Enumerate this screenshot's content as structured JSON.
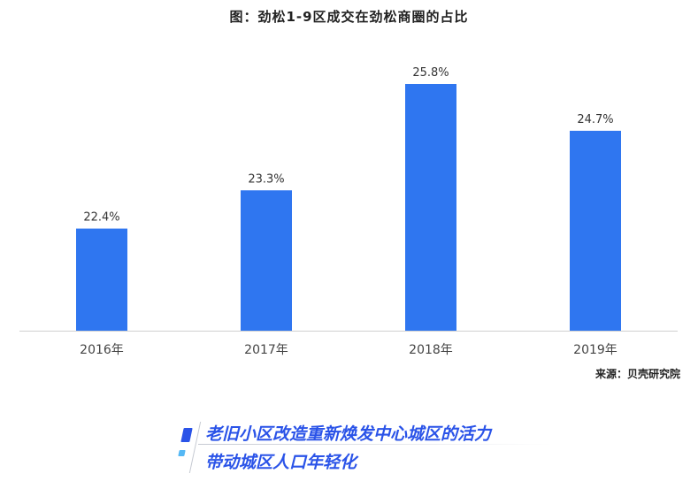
{
  "chart_data": {
    "type": "bar",
    "title": "图：劲松1-9区成交在劲松商圈的占比",
    "categories": [
      "2016年",
      "2017年",
      "2018年",
      "2019年"
    ],
    "values": [
      22.4,
      23.3,
      25.8,
      24.7
    ],
    "value_labels": [
      "22.4%",
      "23.3%",
      "25.8%",
      "24.7%"
    ],
    "ylim": [
      20.0,
      26.5
    ],
    "bar_color": "#2f76f0",
    "grid": false,
    "legend": "none"
  },
  "source": "来源：贝壳研究院",
  "heading": {
    "line1": "老旧小区改造重新焕发中心城区的活力",
    "line2": "带动城区人口年轻化",
    "color": "#2a53e8"
  }
}
